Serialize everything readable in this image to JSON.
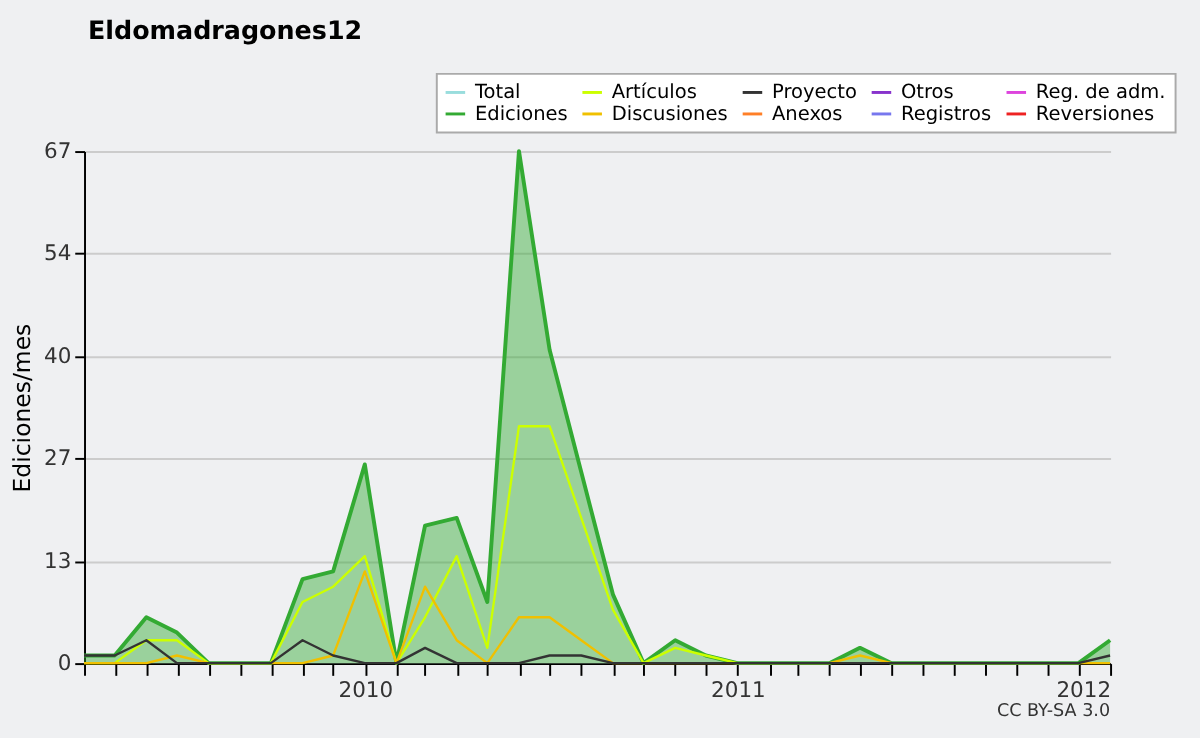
{
  "chart_data": {
    "type": "line",
    "title": "Eldomadragones12",
    "ylabel": "Ediciones/mes",
    "x": [
      "2009-04",
      "2009-05",
      "2009-06",
      "2009-07",
      "2009-08",
      "2009-09",
      "2009-10",
      "2009-11",
      "2009-12",
      "2010-01",
      "2010-02",
      "2010-03",
      "2010-04",
      "2010-05",
      "2010-06",
      "2010-07",
      "2010-08",
      "2010-09",
      "2010-10",
      "2010-11",
      "2010-12",
      "2011-01",
      "2011-02",
      "2011-03",
      "2011-04",
      "2011-05",
      "2011-06",
      "2011-07",
      "2011-08",
      "2011-09",
      "2011-10",
      "2011-11",
      "2011-12",
      "2012-01"
    ],
    "series": [
      {
        "name": "Total",
        "color": "#99dddd",
        "values": [
          null,
          null,
          null,
          null,
          null,
          null,
          null,
          null,
          null,
          null,
          null,
          null,
          null,
          null,
          null,
          null,
          null,
          null,
          null,
          null,
          null,
          null,
          null,
          null,
          null,
          null,
          null,
          null,
          null,
          null,
          null,
          null,
          null,
          null
        ]
      },
      {
        "name": "Ediciones",
        "color": "#33aa33",
        "type": "area",
        "values": [
          1,
          1,
          6,
          4,
          0,
          0,
          0,
          11,
          12,
          26,
          0,
          18,
          19,
          8,
          67,
          41,
          25,
          9,
          0,
          3,
          1,
          0,
          0,
          0,
          0,
          2,
          0,
          0,
          0,
          0,
          0,
          0,
          0,
          3
        ]
      },
      {
        "name": "Artículos",
        "color": "#ccff00",
        "values": [
          0,
          0,
          3,
          3,
          0,
          0,
          0,
          8,
          10,
          14,
          0,
          6,
          14,
          2,
          31,
          31,
          19,
          7,
          0,
          2,
          1,
          0,
          null,
          null,
          null,
          null,
          null,
          null,
          null,
          null,
          null,
          null,
          null,
          null
        ]
      },
      {
        "name": "Discusiones",
        "color": "#f0c000",
        "values": [
          0,
          0,
          0,
          1,
          0,
          0,
          0,
          0,
          1,
          12,
          0,
          10,
          3,
          0,
          6,
          6,
          3,
          0,
          0,
          0,
          0,
          0,
          0,
          0,
          0,
          1,
          0,
          0,
          0,
          0,
          0,
          0,
          0,
          0
        ]
      },
      {
        "name": "Proyecto",
        "color": "#333333",
        "values": [
          1,
          1,
          3,
          0,
          0,
          0,
          0,
          3,
          1,
          0,
          0,
          2,
          0,
          0,
          0,
          1,
          1,
          0,
          0,
          0,
          0,
          0,
          0,
          0,
          0,
          0,
          0,
          0,
          0,
          0,
          0,
          0,
          0,
          1
        ]
      },
      {
        "name": "Anexos",
        "color": "#ff7f27",
        "values": [
          null,
          null,
          null,
          null,
          null,
          null,
          null,
          null,
          null,
          null,
          null,
          null,
          null,
          null,
          null,
          null,
          null,
          null,
          null,
          null,
          null,
          null,
          null,
          null,
          null,
          null,
          null,
          null,
          null,
          null,
          null,
          null,
          null,
          null
        ]
      },
      {
        "name": "Otros",
        "color": "#8833cc",
        "values": [
          null,
          null,
          null,
          null,
          null,
          null,
          null,
          null,
          null,
          null,
          null,
          null,
          null,
          null,
          null,
          null,
          null,
          null,
          null,
          null,
          null,
          null,
          null,
          null,
          null,
          null,
          null,
          null,
          null,
          null,
          null,
          null,
          null,
          null
        ]
      },
      {
        "name": "Registros",
        "color": "#7777ee",
        "values": [
          null,
          null,
          null,
          null,
          null,
          null,
          null,
          null,
          null,
          null,
          null,
          null,
          null,
          null,
          null,
          null,
          null,
          null,
          null,
          null,
          null,
          null,
          null,
          null,
          null,
          null,
          null,
          null,
          null,
          null,
          null,
          null,
          null,
          null
        ]
      },
      {
        "name": "Reg. de adm.",
        "color": "#dd44dd",
        "values": [
          null,
          null,
          null,
          null,
          null,
          null,
          null,
          null,
          null,
          null,
          null,
          null,
          null,
          null,
          null,
          null,
          null,
          null,
          null,
          null,
          null,
          null,
          null,
          null,
          null,
          null,
          null,
          null,
          null,
          null,
          null,
          null,
          null,
          null
        ]
      },
      {
        "name": "Reversiones",
        "color": "#ee2222",
        "values": [
          null,
          null,
          null,
          null,
          null,
          null,
          null,
          null,
          null,
          null,
          null,
          null,
          null,
          null,
          null,
          null,
          null,
          null,
          null,
          null,
          null,
          null,
          null,
          null,
          null,
          null,
          null,
          null,
          null,
          null,
          null,
          null,
          null,
          null
        ]
      }
    ],
    "xlim": [
      "2009-04",
      "2012-01"
    ],
    "xticks": [
      {
        "value": "2009-04",
        "label": null
      },
      {
        "value": "2009-05",
        "label": null
      },
      {
        "value": "2009-06",
        "label": null
      },
      {
        "value": "2009-07",
        "label": null
      },
      {
        "value": "2009-08",
        "label": null
      },
      {
        "value": "2009-09",
        "label": null
      },
      {
        "value": "2009-10",
        "label": null
      },
      {
        "value": "2009-11",
        "label": null
      },
      {
        "value": "2009-12",
        "label": null
      },
      "2010",
      {
        "value": "2010-02",
        "label": null
      },
      {
        "value": "2010-03",
        "label": null
      },
      {
        "value": "2010-04",
        "label": null
      },
      {
        "value": "2010-05",
        "label": null
      },
      {
        "value": "2010-06",
        "label": null
      },
      {
        "value": "2010-07",
        "label": null
      },
      {
        "value": "2010-08",
        "label": null
      },
      {
        "value": "2010-09",
        "label": null
      },
      {
        "value": "2010-10",
        "label": null
      },
      {
        "value": "2010-11",
        "label": null
      },
      {
        "value": "2010-12",
        "label": null
      },
      "2011",
      {
        "value": "2011-02",
        "label": null
      },
      {
        "value": "2011-03",
        "label": null
      },
      {
        "value": "2011-04",
        "label": null
      },
      {
        "value": "2011-05",
        "label": null
      },
      {
        "value": "2011-06",
        "label": null
      },
      {
        "value": "2011-07",
        "label": null
      },
      {
        "value": "2011-08",
        "label": null
      },
      {
        "value": "2011-09",
        "label": null
      },
      {
        "value": "2011-10",
        "label": null
      },
      {
        "value": "2011-11",
        "label": null
      },
      {
        "value": "2011-12",
        "label": null
      },
      "2012"
    ],
    "ylim": [
      0,
      67
    ],
    "yticks": [
      0,
      {
        "value": 13.4,
        "label": "13"
      },
      {
        "value": 26.8,
        "label": "27"
      },
      {
        "value": 40.2,
        "label": "40"
      },
      {
        "value": 53.6,
        "label": "54"
      },
      67
    ],
    "grid": "y",
    "legend": "top right",
    "line_style": "solid",
    "marker": "none",
    "annotations": [
      "CC BY-SA 3.0"
    ]
  }
}
